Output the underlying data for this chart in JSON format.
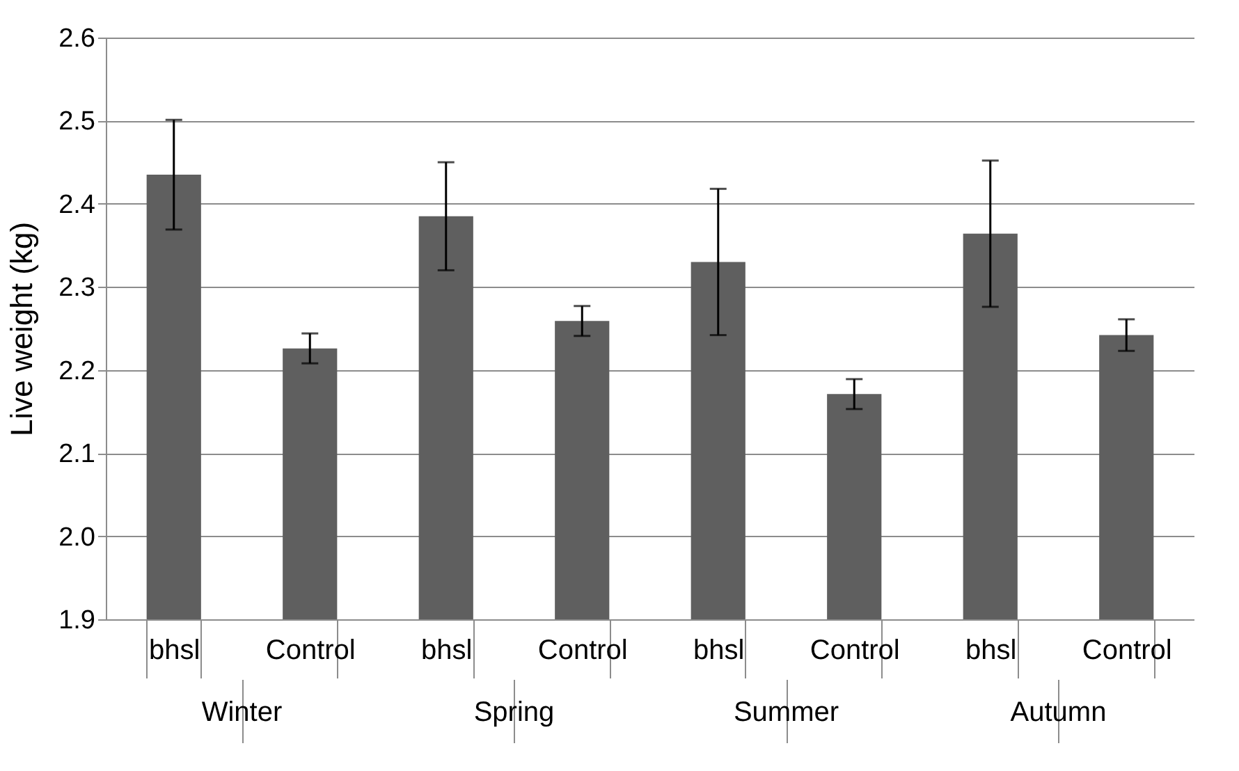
{
  "chart_data": {
    "type": "bar",
    "ylabel": "Live weight (kg)",
    "categories": [
      "bhsl",
      "Control",
      "bhsl",
      "Control",
      "bhsl",
      "Control",
      "bhsl",
      "Control"
    ],
    "values": [
      2.435,
      2.226,
      2.385,
      2.259,
      2.33,
      2.171,
      2.364,
      2.242
    ],
    "errors": [
      0.066,
      0.018,
      0.065,
      0.018,
      0.088,
      0.018,
      0.088,
      0.019
    ],
    "color": "#5f5f5f",
    "ylim": [
      1.9,
      2.6
    ],
    "yticks": [
      {
        "value": 1.9,
        "label": "1.9"
      },
      {
        "value": 2.0,
        "label": "2.0"
      },
      {
        "value": 2.1,
        "label": "2.1"
      },
      {
        "value": 2.2,
        "label": "2.2"
      },
      {
        "value": 2.3,
        "label": "2.3"
      },
      {
        "value": 2.4,
        "label": "2.4"
      },
      {
        "value": 2.5,
        "label": "2.5"
      },
      {
        "value": 2.6,
        "label": "2.6"
      }
    ],
    "grid": "y",
    "annotations": [
      "Winter",
      "Spring",
      "Summer",
      "Autumn"
    ]
  }
}
